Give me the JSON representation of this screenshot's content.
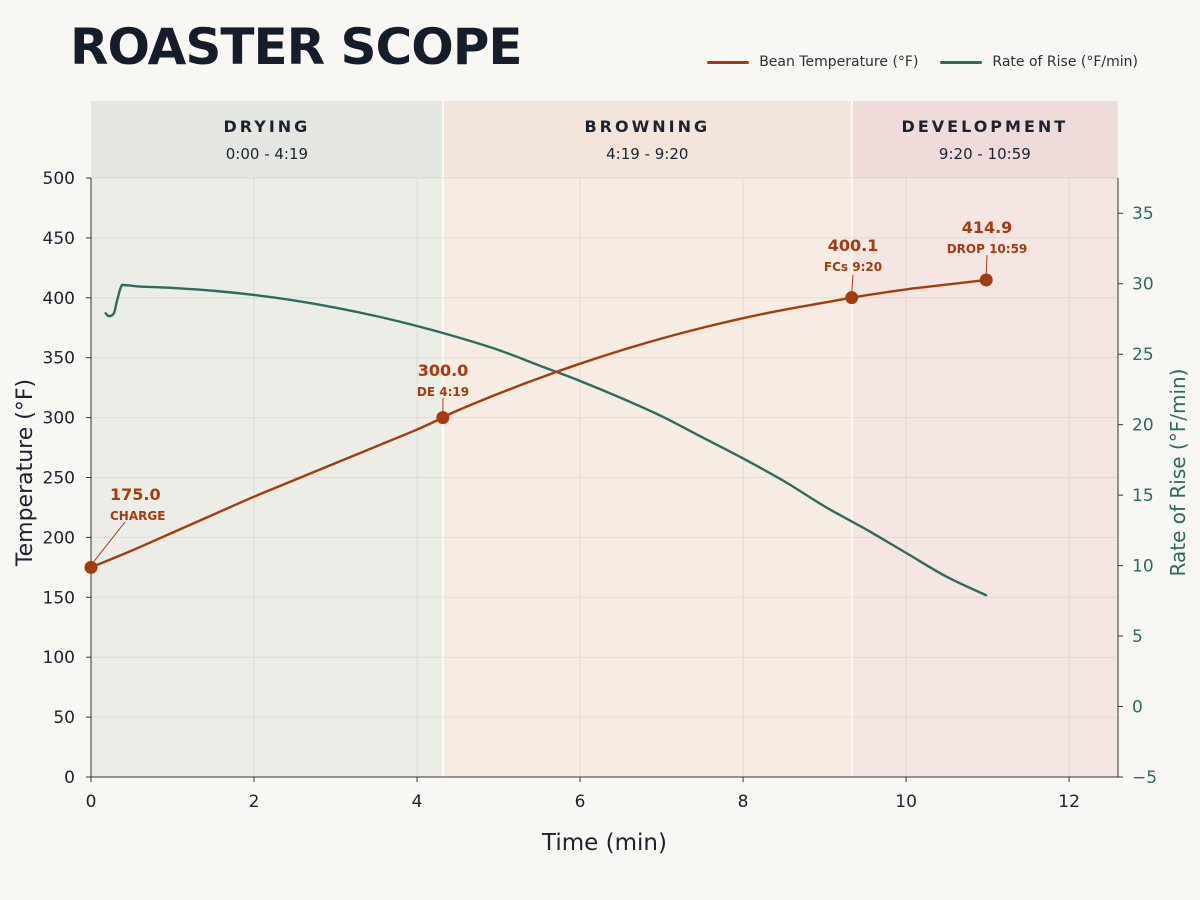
{
  "title": "ROASTER SCOPE",
  "colors": {
    "bean_temp": "#a33c10",
    "ror": "#2e6b5e",
    "drying_bg": "#e4e7e1",
    "browning_bg": "#f3e5da",
    "development_bg": "#efdbda",
    "drying_plot": "#ecede7",
    "browning_plot": "#f6ece4",
    "development_plot": "#f5e6e4"
  },
  "legend": [
    {
      "label": "Bean Temperature (°F)",
      "color": "#a33c10"
    },
    {
      "label": "Rate of Rise (°F/min)",
      "color": "#2e6b5e"
    }
  ],
  "phases": [
    {
      "name": "DRYING",
      "range": "0:00 - 4:19",
      "start": 0,
      "end": 4.3167
    },
    {
      "name": "BROWNING",
      "range": "4:19 - 9:20",
      "start": 4.3167,
      "end": 9.3333
    },
    {
      "name": "DEVELOPMENT",
      "range": "9:20 - 10:59",
      "start": 9.3333,
      "end": 12.6
    }
  ],
  "chart_data": {
    "type": "line",
    "xlabel": "Time (min)",
    "ylabel": "Temperature (°F)",
    "y2label": "Rate of Rise (°F/min)",
    "xlim": [
      0,
      12.6
    ],
    "ylim": [
      0,
      500
    ],
    "y2lim": [
      -5,
      37.5
    ],
    "xticks": [
      0,
      2,
      4,
      6,
      8,
      10,
      12
    ],
    "yticks": [
      0,
      50,
      100,
      150,
      200,
      250,
      300,
      350,
      400,
      450,
      500
    ],
    "y2ticks": [
      -5,
      0,
      5,
      10,
      15,
      20,
      25,
      30,
      35
    ],
    "grid": true,
    "legend_position": "top-right",
    "series": [
      {
        "name": "Bean Temperature (°F)",
        "axis": "left",
        "x": [
          0,
          0.5,
          1,
          1.5,
          2,
          2.5,
          3,
          3.5,
          4,
          4.3167,
          4.5,
          5,
          5.5,
          6,
          6.5,
          7,
          7.5,
          8,
          8.5,
          9,
          9.3333,
          9.5,
          10,
          10.5,
          10.9833
        ],
        "values": [
          175,
          189,
          204,
          219,
          234,
          248,
          262,
          276,
          290,
          300,
          306,
          320,
          333,
          345,
          356,
          366,
          375,
          383,
          390,
          396,
          400.1,
          402,
          407,
          411,
          414.9
        ]
      },
      {
        "name": "Rate of Rise (°F/min)",
        "axis": "right",
        "x": [
          0.18,
          0.22,
          0.28,
          0.32,
          0.37,
          0.42,
          0.6,
          1,
          1.5,
          2,
          2.5,
          3,
          3.5,
          4,
          4.5,
          5,
          5.5,
          6,
          6.5,
          7,
          7.5,
          8,
          8.5,
          9,
          9.5,
          10,
          10.5,
          10.98
        ],
        "values": [
          27.9,
          27.7,
          27.9,
          28.8,
          29.8,
          29.9,
          29.8,
          29.7,
          29.5,
          29.2,
          28.8,
          28.3,
          27.7,
          27.0,
          26.2,
          25.3,
          24.2,
          23.1,
          21.9,
          20.6,
          19.1,
          17.6,
          16.0,
          14.2,
          12.6,
          10.9,
          9.2,
          7.9
        ]
      }
    ],
    "annotations": [
      {
        "value": "175.0",
        "event": "CHARGE",
        "x": 0,
        "y": 175
      },
      {
        "value": "300.0",
        "event": "DE 4:19",
        "x": 4.3167,
        "y": 300
      },
      {
        "value": "400.1",
        "event": "FCs 9:20",
        "x": 9.3333,
        "y": 400.1
      },
      {
        "value": "414.9",
        "event": "DROP 10:59",
        "x": 10.9833,
        "y": 414.9
      }
    ]
  }
}
